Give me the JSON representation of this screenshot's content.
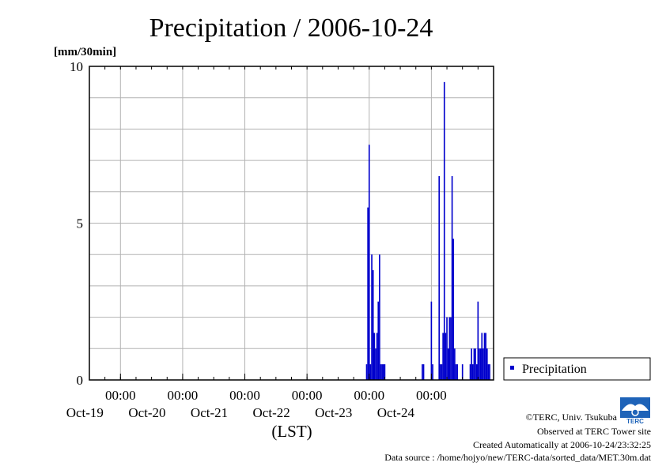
{
  "header": {
    "title": "Precipitation / 2006-10-24",
    "unit": "[mm/30min]"
  },
  "axis": {
    "x_label": "(LST)"
  },
  "legend": {
    "label": "Precipitation"
  },
  "footer": {
    "copyright": "©TERC, Univ. Tsukuba",
    "observed": "Observed at TERC Tower site",
    "created": "Created Automatically at 2006-10-24/23:32:25",
    "source": "Data source : /home/hojyo/new/TERC-data/sorted_data/MET.30m.dat",
    "logo_text": "TERC"
  },
  "colors": {
    "series": "#0000cc",
    "grid": "#b3b3b3",
    "frame": "#000000"
  },
  "chart_data": {
    "type": "bar",
    "title": "Precipitation / 2006-10-24",
    "ylabel": "[mm/30min]",
    "xlabel": "(LST)",
    "ylim": [
      0,
      10
    ],
    "y_ticks": [
      0,
      5,
      10
    ],
    "xlim": [
      "2006-10-18 12:00",
      "2006-10-24 24:00"
    ],
    "x_ticks": [
      {
        "time": "2006-10-19 00:00",
        "label": "00:00",
        "date": "Oct-19"
      },
      {
        "time": "2006-10-20 00:00",
        "label": "00:00",
        "date": "Oct-20"
      },
      {
        "time": "2006-10-21 00:00",
        "label": "00:00",
        "date": "Oct-21"
      },
      {
        "time": "2006-10-22 00:00",
        "label": "00:00",
        "date": "Oct-22"
      },
      {
        "time": "2006-10-23 00:00",
        "label": "00:00",
        "date": "Oct-23"
      },
      {
        "time": "2006-10-24 00:00",
        "label": "00:00",
        "date": "Oct-24"
      }
    ],
    "grid": true,
    "legend_position": "right",
    "series": [
      {
        "name": "Precipitation",
        "x": [
          "2006-10-22 23:00",
          "2006-10-22 23:30",
          "2006-10-23 00:00",
          "2006-10-23 00:30",
          "2006-10-23 01:00",
          "2006-10-23 01:30",
          "2006-10-23 02:00",
          "2006-10-23 02:30",
          "2006-10-23 03:00",
          "2006-10-23 03:30",
          "2006-10-23 04:00",
          "2006-10-23 04:30",
          "2006-10-23 05:00",
          "2006-10-23 05:30",
          "2006-10-23 06:00",
          "2006-10-23 20:30",
          "2006-10-23 21:00",
          "2006-10-24 00:00",
          "2006-10-24 00:30",
          "2006-10-24 03:00",
          "2006-10-24 03:30",
          "2006-10-24 04:00",
          "2006-10-24 04:30",
          "2006-10-24 05:00",
          "2006-10-24 05:30",
          "2006-10-24 06:00",
          "2006-10-24 06:30",
          "2006-10-24 07:00",
          "2006-10-24 07:30",
          "2006-10-24 08:00",
          "2006-10-24 08:30",
          "2006-10-24 09:00",
          "2006-10-24 09:30",
          "2006-10-24 10:00",
          "2006-10-24 12:00",
          "2006-10-24 15:00",
          "2006-10-24 15:30",
          "2006-10-24 16:00",
          "2006-10-24 16:30",
          "2006-10-24 17:00",
          "2006-10-24 17:30",
          "2006-10-24 18:00",
          "2006-10-24 18:30",
          "2006-10-24 19:00",
          "2006-10-24 19:30",
          "2006-10-24 20:00",
          "2006-10-24 20:30",
          "2006-10-24 21:00",
          "2006-10-24 21:30",
          "2006-10-24 22:00",
          "2006-10-24 22:30"
        ],
        "values": [
          0.5,
          5.5,
          7.5,
          0.5,
          4.0,
          3.5,
          1.5,
          1.0,
          1.5,
          2.5,
          4.0,
          0.5,
          0.5,
          0.5,
          0.5,
          0.5,
          0.5,
          2.5,
          0.5,
          6.5,
          0.5,
          0.5,
          1.5,
          9.5,
          1.5,
          2.0,
          1.0,
          2.0,
          2.0,
          6.5,
          4.5,
          1.0,
          0.5,
          0.5,
          0.5,
          0.5,
          1.0,
          0.5,
          1.0,
          1.0,
          0.5,
          2.5,
          1.0,
          1.0,
          1.5,
          1.0,
          1.5,
          1.5,
          1.0,
          0.5,
          0.5
        ]
      }
    ]
  }
}
